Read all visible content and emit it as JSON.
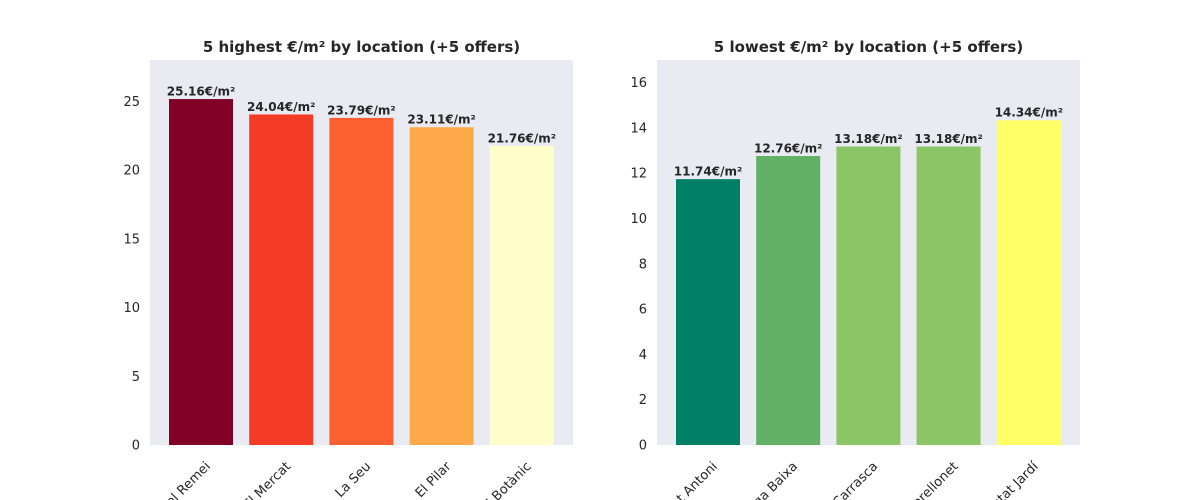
{
  "chart_data": [
    {
      "type": "bar",
      "title": "5 highest €/m² by location (+5 offers)",
      "categories": [
        "del Remei",
        "El Mercat",
        "La Seu",
        "El Pilar",
        "El Botànic"
      ],
      "values": [
        25.16,
        24.04,
        23.79,
        23.11,
        21.76
      ],
      "data_labels": [
        "25.16€/m²",
        "24.04€/m²",
        "23.79€/m²",
        "23.11€/m²",
        "21.76€/m²"
      ],
      "colors": [
        "#800026",
        "#f43b26",
        "#fe5f31",
        "#fea94a",
        "#fffecb"
      ],
      "ylim": [
        0,
        28
      ],
      "yticks": [
        0,
        5,
        10,
        15,
        20,
        25
      ],
      "grid": false,
      "background": "#eaeaf2"
    },
    {
      "type": "bar",
      "title": "5 lowest €/m² by location (+5 offers)",
      "categories": [
        "Sant Antoni",
        "Vega Baixa",
        "Carrasca",
        "Perellonet",
        "Ciutat Jardí"
      ],
      "values": [
        11.74,
        12.76,
        13.18,
        13.18,
        14.34
      ],
      "data_labels": [
        "11.74€/m²",
        "12.76€/m²",
        "13.18€/m²",
        "13.18€/m²",
        "14.34€/m²"
      ],
      "colors": [
        "#008066",
        "#62b166",
        "#8cc565",
        "#8cc565",
        "#ffff66"
      ],
      "ylim": [
        0,
        17
      ],
      "yticks": [
        0,
        2,
        4,
        6,
        8,
        10,
        12,
        14,
        16
      ],
      "grid": false,
      "background": "#eaeaf2"
    }
  ]
}
